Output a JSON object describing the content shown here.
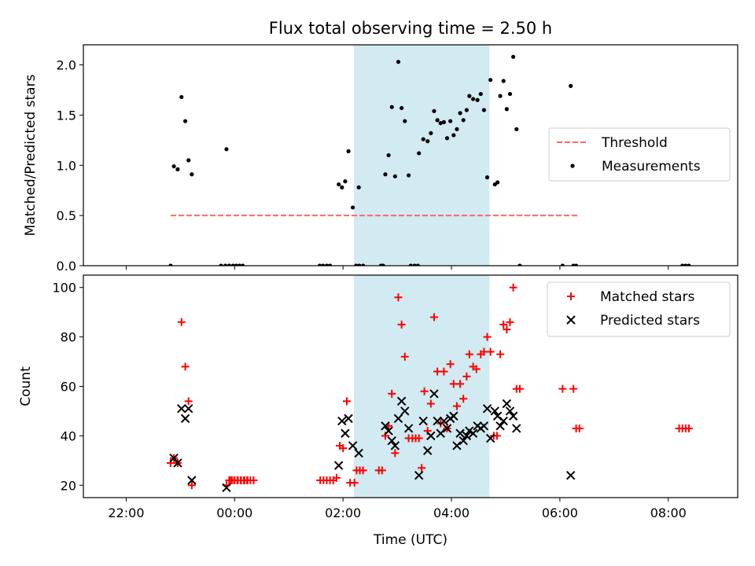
{
  "figure_title": "Flux total observing time = 2.50 h",
  "xlabel": "Time (UTC)",
  "colors": {
    "shade": "#add8e6",
    "threshold": "#ff6666",
    "matched": "#ff0000",
    "predicted": "#000000",
    "measurement": "#000000"
  },
  "chart_data": [
    {
      "type": "scatter",
      "title": "Flux total observing time = 2.50 h",
      "xlabel": "",
      "ylabel": "Matched/Predicted stars",
      "xlim": [
        -2.79,
        9.28
      ],
      "ylim": [
        0,
        2.2
      ],
      "yticks": [
        0.0,
        0.5,
        1.0,
        1.5,
        2.0
      ],
      "ytick_labels": [
        "0.0",
        "0.5",
        "1.0",
        "1.5",
        "2.0"
      ],
      "xticks": [
        -2,
        0,
        2,
        4,
        6,
        8
      ],
      "xtick_labels": [],
      "shaded_span": [
        2.2,
        4.7
      ],
      "legend": {
        "position": "center-right",
        "entries": [
          "Threshold",
          "Measurements"
        ]
      },
      "threshold": {
        "name": "Threshold",
        "value": 0.5,
        "x_range": [
          -1.18,
          6.35
        ]
      },
      "series": [
        {
          "name": "Measurements",
          "points": [
            [
              -1.18,
              0.0
            ],
            [
              -1.12,
              0.99
            ],
            [
              -1.05,
              0.96
            ],
            [
              -0.98,
              1.68
            ],
            [
              -0.91,
              1.44
            ],
            [
              -0.85,
              1.05
            ],
            [
              -0.79,
              0.91
            ],
            [
              -0.15,
              1.16
            ],
            [
              -0.25,
              0.0
            ],
            [
              -0.17,
              0.0
            ],
            [
              -0.1,
              0.0
            ],
            [
              -0.03,
              0.0
            ],
            [
              0.03,
              0.0
            ],
            [
              0.09,
              0.0
            ],
            [
              0.15,
              0.0
            ],
            [
              1.57,
              0.0
            ],
            [
              1.63,
              0.0
            ],
            [
              1.7,
              0.0
            ],
            [
              1.76,
              0.0
            ],
            [
              1.92,
              0.81
            ],
            [
              1.98,
              0.78
            ],
            [
              2.04,
              0.84
            ],
            [
              2.1,
              1.14
            ],
            [
              2.18,
              0.58
            ],
            [
              2.29,
              0.78
            ],
            [
              2.24,
              0.0
            ],
            [
              2.3,
              0.0
            ],
            [
              2.37,
              0.0
            ],
            [
              2.7,
              0.0
            ],
            [
              2.74,
              0.0
            ],
            [
              2.78,
              0.91
            ],
            [
              2.84,
              1.1
            ],
            [
              2.9,
              1.58
            ],
            [
              2.96,
              0.89
            ],
            [
              3.02,
              2.03
            ],
            [
              3.08,
              1.57
            ],
            [
              3.14,
              1.44
            ],
            [
              3.21,
              0.9
            ],
            [
              3.25,
              0.0
            ],
            [
              3.32,
              0.0
            ],
            [
              3.38,
              0.0
            ],
            [
              3.4,
              1.12
            ],
            [
              3.48,
              1.26
            ],
            [
              3.56,
              1.24
            ],
            [
              3.62,
              1.32
            ],
            [
              3.68,
              1.54
            ],
            [
              3.74,
              1.45
            ],
            [
              3.8,
              1.42
            ],
            [
              3.86,
              1.43
            ],
            [
              3.92,
              1.27
            ],
            [
              3.98,
              1.44
            ],
            [
              4.04,
              1.3
            ],
            [
              4.1,
              1.36
            ],
            [
              4.16,
              1.52
            ],
            [
              4.22,
              1.45
            ],
            [
              4.28,
              1.55
            ],
            [
              4.33,
              1.69
            ],
            [
              4.4,
              1.66
            ],
            [
              4.48,
              1.65
            ],
            [
              4.54,
              1.71
            ],
            [
              4.6,
              1.55
            ],
            [
              4.66,
              0.88
            ],
            [
              4.72,
              1.85
            ],
            [
              4.8,
              0.81
            ],
            [
              4.85,
              0.83
            ],
            [
              4.9,
              1.69
            ],
            [
              4.96,
              1.84
            ],
            [
              5.02,
              1.56
            ],
            [
              5.08,
              1.71
            ],
            [
              5.14,
              2.08
            ],
            [
              5.2,
              1.36
            ],
            [
              5.26,
              0.0
            ],
            [
              6.05,
              0.0
            ],
            [
              6.25,
              0.0
            ],
            [
              6.2,
              1.79
            ],
            [
              6.3,
              0.0
            ],
            [
              8.26,
              0.0
            ],
            [
              8.32,
              0.0
            ],
            [
              8.38,
              0.0
            ]
          ]
        }
      ]
    },
    {
      "type": "scatter",
      "title": "",
      "xlabel": "Time (UTC)",
      "ylabel": "Count",
      "xlim": [
        -2.79,
        9.28
      ],
      "ylim": [
        15,
        105
      ],
      "yticks": [
        20,
        40,
        60,
        80,
        100
      ],
      "ytick_labels": [
        "20",
        "40",
        "60",
        "80",
        "100"
      ],
      "xticks": [
        -2,
        0,
        2,
        4,
        6,
        8
      ],
      "xtick_labels": [
        "22:00",
        "00:00",
        "02:00",
        "04:00",
        "06:00",
        "08:00"
      ],
      "shaded_span": [
        2.2,
        4.7
      ],
      "legend": {
        "position": "top-right",
        "entries": [
          "Matched stars",
          "Predicted stars"
        ]
      },
      "series": [
        {
          "name": "Matched stars",
          "marker": "+",
          "points": [
            [
              -1.18,
              29
            ],
            [
              -1.12,
              31
            ],
            [
              -1.05,
              29
            ],
            [
              -0.98,
              86
            ],
            [
              -0.91,
              68
            ],
            [
              -0.85,
              54
            ],
            [
              -0.79,
              20
            ],
            [
              -0.15,
              20
            ],
            [
              -0.08,
              22
            ],
            [
              -0.01,
              22
            ],
            [
              0.05,
              22
            ],
            [
              0.11,
              22
            ],
            [
              0.17,
              22
            ],
            [
              0.23,
              22
            ],
            [
              0.29,
              22
            ],
            [
              0.35,
              22
            ],
            [
              -0.1,
              22
            ],
            [
              -0.05,
              22
            ],
            [
              0.0,
              22
            ],
            [
              0.06,
              22
            ],
            [
              0.12,
              22
            ],
            [
              0.18,
              22
            ],
            [
              0.24,
              22
            ],
            [
              1.58,
              22
            ],
            [
              1.64,
              22
            ],
            [
              1.7,
              22
            ],
            [
              1.76,
              22
            ],
            [
              1.82,
              22
            ],
            [
              1.88,
              23
            ],
            [
              1.94,
              36
            ],
            [
              2.0,
              35
            ],
            [
              2.07,
              54
            ],
            [
              2.13,
              21
            ],
            [
              2.21,
              21
            ],
            [
              2.25,
              26
            ],
            [
              2.31,
              26
            ],
            [
              2.37,
              26
            ],
            [
              2.66,
              26
            ],
            [
              2.72,
              26
            ],
            [
              2.78,
              40
            ],
            [
              2.84,
              44
            ],
            [
              2.9,
              57
            ],
            [
              2.96,
              33
            ],
            [
              3.02,
              96
            ],
            [
              3.08,
              85
            ],
            [
              3.14,
              72
            ],
            [
              3.21,
              39
            ],
            [
              3.28,
              39
            ],
            [
              3.34,
              39
            ],
            [
              3.4,
              39
            ],
            [
              3.45,
              27
            ],
            [
              3.5,
              58
            ],
            [
              3.56,
              42
            ],
            [
              3.62,
              53
            ],
            [
              3.68,
              88
            ],
            [
              3.74,
              66
            ],
            [
              3.8,
              45
            ],
            [
              3.86,
              66
            ],
            [
              3.92,
              43
            ],
            [
              3.98,
              69
            ],
            [
              4.04,
              61
            ],
            [
              4.1,
              52
            ],
            [
              4.16,
              61
            ],
            [
              4.22,
              55
            ],
            [
              4.28,
              64
            ],
            [
              4.33,
              73
            ],
            [
              4.4,
              68
            ],
            [
              4.46,
              67
            ],
            [
              4.54,
              73
            ],
            [
              4.6,
              74
            ],
            [
              4.66,
              80
            ],
            [
              4.72,
              74
            ],
            [
              4.78,
              40
            ],
            [
              4.84,
              40
            ],
            [
              4.9,
              73
            ],
            [
              4.96,
              85
            ],
            [
              5.02,
              83
            ],
            [
              5.08,
              86
            ],
            [
              5.14,
              100
            ],
            [
              5.2,
              59
            ],
            [
              5.26,
              59
            ],
            [
              6.05,
              59
            ],
            [
              6.25,
              59
            ],
            [
              6.3,
              43
            ],
            [
              6.36,
              43
            ],
            [
              8.2,
              43
            ],
            [
              8.26,
              43
            ],
            [
              8.32,
              43
            ],
            [
              8.38,
              43
            ]
          ]
        },
        {
          "name": "Predicted stars",
          "marker": "x",
          "points": [
            [
              -1.12,
              31
            ],
            [
              -1.05,
              29
            ],
            [
              -0.98,
              51
            ],
            [
              -0.91,
              47
            ],
            [
              -0.85,
              51
            ],
            [
              -0.79,
              22
            ],
            [
              -0.15,
              19
            ],
            [
              1.92,
              28
            ],
            [
              1.98,
              46
            ],
            [
              2.04,
              41
            ],
            [
              2.1,
              47
            ],
            [
              2.18,
              36
            ],
            [
              2.29,
              33
            ],
            [
              2.78,
              44
            ],
            [
              2.84,
              42
            ],
            [
              2.9,
              38
            ],
            [
              2.96,
              36
            ],
            [
              3.02,
              47
            ],
            [
              3.08,
              54
            ],
            [
              3.14,
              50
            ],
            [
              3.21,
              43
            ],
            [
              3.4,
              24
            ],
            [
              3.48,
              46
            ],
            [
              3.56,
              34
            ],
            [
              3.62,
              40
            ],
            [
              3.68,
              57
            ],
            [
              3.74,
              46
            ],
            [
              3.8,
              41
            ],
            [
              3.86,
              46
            ],
            [
              3.92,
              43
            ],
            [
              3.98,
              47
            ],
            [
              4.04,
              48
            ],
            [
              4.1,
              36
            ],
            [
              4.16,
              41
            ],
            [
              4.22,
              38
            ],
            [
              4.28,
              40
            ],
            [
              4.33,
              42
            ],
            [
              4.4,
              41
            ],
            [
              4.48,
              44
            ],
            [
              4.54,
              43
            ],
            [
              4.6,
              44
            ],
            [
              4.66,
              51
            ],
            [
              4.72,
              39
            ],
            [
              4.8,
              50
            ],
            [
              4.85,
              48
            ],
            [
              4.9,
              44
            ],
            [
              4.96,
              46
            ],
            [
              5.02,
              53
            ],
            [
              5.08,
              50
            ],
            [
              5.14,
              48
            ],
            [
              5.2,
              43
            ],
            [
              6.2,
              24
            ]
          ]
        }
      ]
    }
  ]
}
